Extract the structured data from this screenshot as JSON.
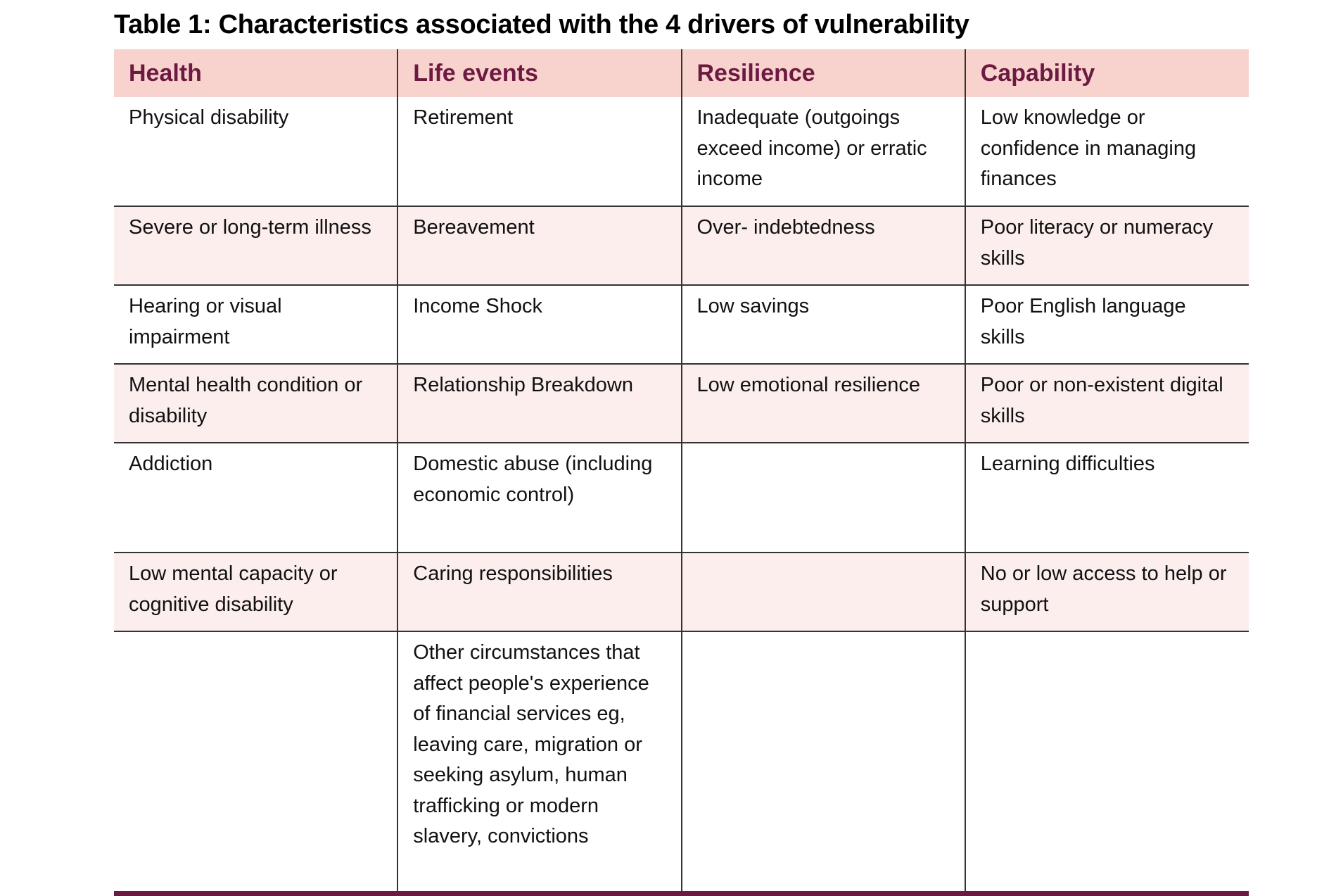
{
  "title": "Table 1: Characteristics associated with the 4 drivers of vulnerability",
  "headers": [
    "Health",
    "Life events",
    "Resilience",
    "Capability"
  ],
  "rows": [
    [
      "Physical disability",
      "Retirement",
      "Inadequate (outgoings exceed income) or erratic income",
      "Low knowledge or confidence in managing finances"
    ],
    [
      "Severe or long-term illness",
      "Bereavement",
      "Over- indebtedness",
      "Poor literacy or numeracy skills"
    ],
    [
      "Hearing or visual impairment",
      "Income Shock",
      "Low savings",
      "Poor English language skills"
    ],
    [
      "Mental health condition or disability",
      "Relationship Breakdown",
      "Low emotional resilience",
      "Poor or non-existent digital skills"
    ],
    [
      "Addiction",
      "Domestic abuse (including economic control)",
      "",
      "Learning difficulties"
    ],
    [
      "Low mental capacity or cognitive disability",
      "Caring responsibilities",
      "",
      "No or low access to help or support"
    ],
    [
      "",
      "Other circumstances that affect people's experience of financial services eg, leaving care, migration or seeking asylum, human trafficking or modern slavery, convictions",
      "",
      ""
    ]
  ],
  "colors": {
    "header_bg": "#f8d3cd",
    "header_text": "#6d1a42",
    "alt_row_bg": "#fbeeed",
    "bottom_rule": "#6d1a42"
  }
}
